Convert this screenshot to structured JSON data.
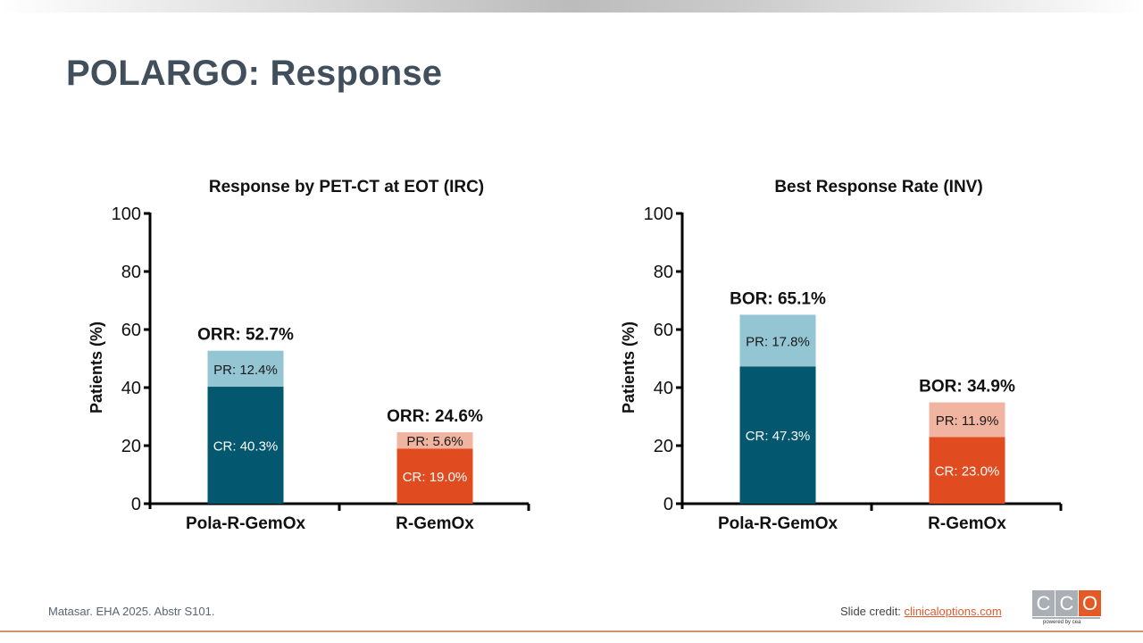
{
  "slide": {
    "title": "POLARGO: Response",
    "reference": "Matasar. EHA 2025. Abstr S101.",
    "credit_label": "Slide credit: ",
    "credit_link": "clinicaloptions.com",
    "logo": {
      "letters": [
        "C",
        "C",
        "O"
      ],
      "tagline": "powered by cea"
    }
  },
  "colors": {
    "pola_cr": "#03586f",
    "pola_pr": "#93c5d3",
    "rgemox_cr": "#e04b1f",
    "rgemox_pr": "#f0b4a1",
    "title": "#414f5c",
    "footer_line": "#d49073"
  },
  "chart_data": [
    {
      "type": "bar",
      "stacked": true,
      "title": "Response by PET-CT at EOT (IRC)",
      "ylabel": "Patients (%)",
      "xlabel": "",
      "ylim": [
        0,
        100
      ],
      "yticks": [
        0,
        20,
        40,
        60,
        80,
        100
      ],
      "categories": [
        "Pola-R-GemOx",
        "R-GemOx"
      ],
      "series": [
        {
          "name": "CR",
          "values": [
            40.3,
            19.0
          ],
          "labels": [
            "CR: 40.3%",
            "CR: 19.0%"
          ]
        },
        {
          "name": "PR",
          "values": [
            12.4,
            5.6
          ],
          "labels": [
            "PR: 12.4%",
            "PR: 5.6%"
          ]
        }
      ],
      "totals": [
        52.7,
        24.6
      ],
      "total_labels": [
        "ORR: 52.7%",
        "ORR: 24.6%"
      ],
      "grid": false
    },
    {
      "type": "bar",
      "stacked": true,
      "title": "Best Response Rate (INV)",
      "ylabel": "Patients (%)",
      "xlabel": "",
      "ylim": [
        0,
        100
      ],
      "yticks": [
        0,
        20,
        40,
        60,
        80,
        100
      ],
      "categories": [
        "Pola-R-GemOx",
        "R-GemOx"
      ],
      "series": [
        {
          "name": "CR",
          "values": [
            47.3,
            23.0
          ],
          "labels": [
            "CR: 47.3%",
            "CR: 23.0%"
          ]
        },
        {
          "name": "PR",
          "values": [
            17.8,
            11.9
          ],
          "labels": [
            "PR: 17.8%",
            "PR: 11.9%"
          ]
        }
      ],
      "totals": [
        65.1,
        34.9
      ],
      "total_labels": [
        "BOR: 65.1%",
        "BOR: 34.9%"
      ],
      "grid": false
    }
  ]
}
